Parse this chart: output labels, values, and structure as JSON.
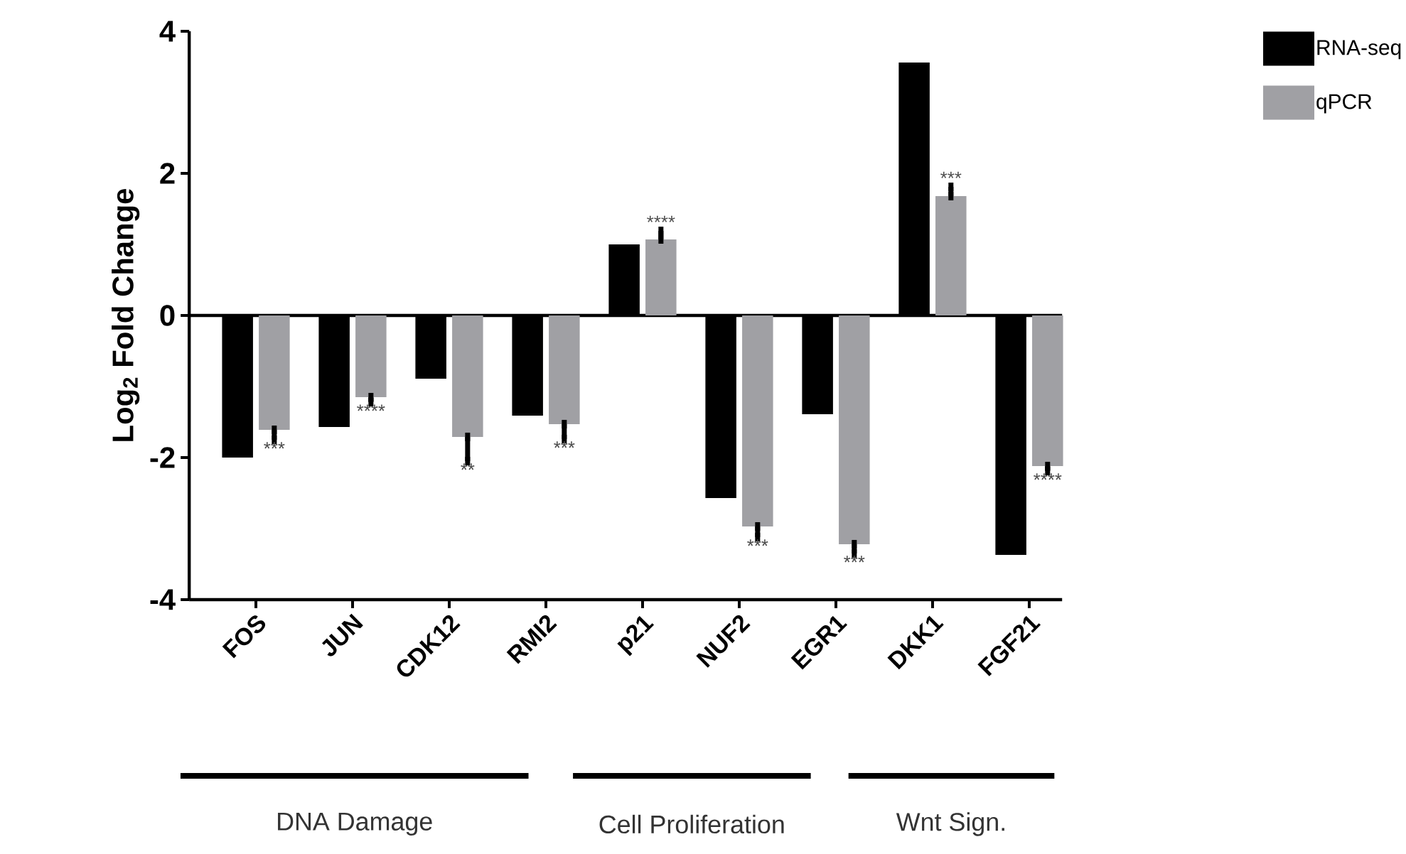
{
  "chart_data": {
    "type": "bar",
    "ylabel": "Log$_{2}$ Fold Change",
    "categories": [
      "FOS",
      "JUN",
      "CDK12",
      "RMI2",
      "p21",
      "NUF2",
      "EGR1",
      "DKK1",
      "FGF21"
    ],
    "series": [
      {
        "name": "RNA-seq",
        "color": "#000000",
        "values": [
          -2.0,
          -1.57,
          -0.89,
          -1.41,
          1.0,
          -2.57,
          -1.39,
          3.56,
          -3.37
        ]
      },
      {
        "name": "qPCR",
        "color": "#a0a0a4",
        "values": [
          -1.61,
          -1.15,
          -1.71,
          -1.53,
          1.07,
          -2.97,
          -3.22,
          1.68,
          -2.12
        ],
        "errors": [
          [
            -1.75,
            -1.61
          ],
          [
            -1.22,
            -1.15
          ],
          [
            -2.05,
            -1.71
          ],
          [
            -1.74,
            -1.53
          ],
          [
            1.07,
            1.19
          ],
          [
            -3.12,
            -2.97
          ],
          [
            -3.35,
            -3.22
          ],
          [
            1.68,
            1.81
          ],
          [
            -2.19,
            -2.12
          ]
        ]
      }
    ],
    "ylim": [
      -4,
      4
    ],
    "yticks": [
      -4,
      -2,
      0,
      2,
      4
    ],
    "legend": "top right",
    "annotations": [
      "***",
      "****",
      "**",
      "***",
      "****",
      "***",
      "***",
      "***",
      "****",
      "DNA Damage",
      "Cell Proliferation",
      "Wnt Sign."
    ]
  }
}
